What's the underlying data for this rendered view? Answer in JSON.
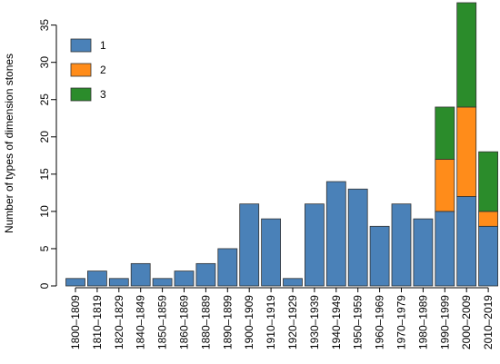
{
  "chart_data": {
    "type": "stacked_bar",
    "ylabel": "Number of types of dimension stones",
    "categories": [
      "1800–1809",
      "1810–1819",
      "1820–1829",
      "1840–1849",
      "1850–1859",
      "1860–1869",
      "1880–1889",
      "1890–1899",
      "1900–1909",
      "1910–1919",
      "1920–1929",
      "1930–1939",
      "1940–1949",
      "1950–1959",
      "1960–1969",
      "1970–1979",
      "1980–1989",
      "1990–1999",
      "2000–2009",
      "2010–2019"
    ],
    "series": [
      {
        "name": "1",
        "color": "#4a81b8",
        "values": [
          1,
          2,
          1,
          3,
          1,
          2,
          3,
          5,
          11,
          9,
          1,
          11,
          14,
          13,
          8,
          11,
          9,
          10,
          12,
          8
        ]
      },
      {
        "name": "2",
        "color": "#ff8c1a",
        "values": [
          0,
          0,
          0,
          0,
          0,
          0,
          0,
          0,
          0,
          0,
          0,
          0,
          0,
          0,
          0,
          0,
          0,
          7,
          12,
          2
        ]
      },
      {
        "name": "3",
        "color": "#2b8c2b",
        "values": [
          0,
          0,
          0,
          0,
          0,
          0,
          0,
          0,
          0,
          0,
          0,
          0,
          0,
          0,
          0,
          0,
          0,
          7,
          14,
          8
        ]
      }
    ],
    "ylim": [
      0,
      38
    ],
    "yticks": [
      0,
      5,
      10,
      15,
      20,
      25,
      30,
      35
    ],
    "legend": "upper left"
  }
}
